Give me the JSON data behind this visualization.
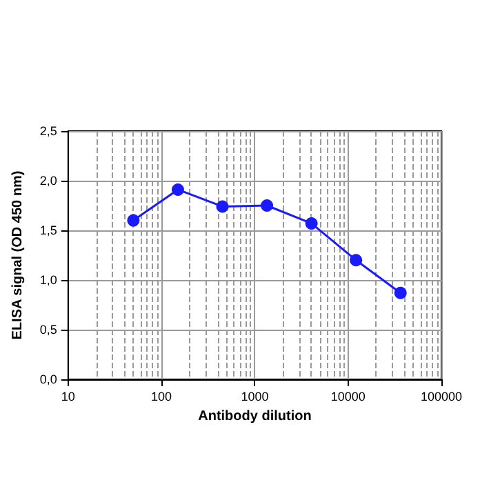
{
  "chart_data": {
    "type": "line",
    "xlabel": "Antibody dilution",
    "ylabel": "ELISA signal (OD 450 nm)",
    "x": [
      50,
      150,
      450,
      1350,
      4050,
      12150,
      36450
    ],
    "series": [
      {
        "color": "#1a1aff",
        "values": [
          1.6,
          1.91,
          1.74,
          1.75,
          1.57,
          1.2,
          0.87
        ]
      }
    ],
    "log": "x",
    "xlim": [
      10,
      100000
    ],
    "xticks": [
      10,
      100,
      1000,
      10000,
      100000
    ],
    "ylim": [
      0,
      2.5
    ],
    "yticks": [
      {
        "value": 0,
        "label": "0,0"
      },
      {
        "value": 0.5,
        "label": "0,5"
      },
      {
        "value": 1,
        "label": "1,0"
      },
      {
        "value": 1.5,
        "label": "1,5"
      },
      {
        "value": 2,
        "label": "2,0"
      },
      {
        "value": 2.5,
        "label": "2,5"
      }
    ],
    "grid": true,
    "marker": "circle",
    "line_style": "solid"
  }
}
